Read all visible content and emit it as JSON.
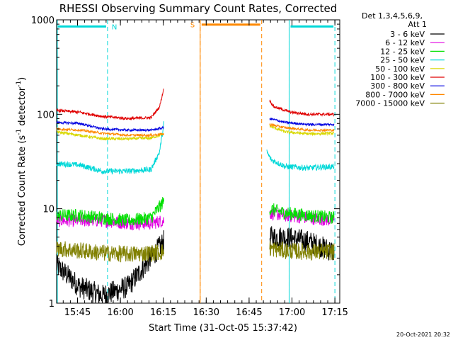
{
  "chart_data": {
    "type": "line",
    "title": "RHESSI Observing Summary Count Rates, Corrected",
    "xlabel": "Start Time (31-Oct-05 15:37:42)",
    "ylabel_main": "Corrected Count Rate (s",
    "ylabel_sup1": "-1",
    "ylabel_mid": " detector",
    "ylabel_sup2": "-1",
    "ylabel_end": ")",
    "y_scale": "log",
    "ylim": [
      1,
      1000
    ],
    "xlim_minutes": [
      0,
      99
    ],
    "x_ticks": [
      "15:45",
      "16:00",
      "16:15",
      "16:30",
      "16:45",
      "17:00",
      "17:15"
    ],
    "x_tick_minutes": [
      7.3,
      22.3,
      37.3,
      52.3,
      67.3,
      82.3,
      97.3
    ],
    "y_ticks": [
      "1",
      "10",
      "100",
      "1000"
    ],
    "y_tick_values": [
      1,
      10,
      100,
      1000
    ],
    "legend_header": [
      "Det 1,3,4,5,6,9,",
      "Att 1"
    ],
    "series": [
      {
        "name": "3 - 6 keV",
        "color": "#000000",
        "seg1": {
          "x": [
            0,
            8,
            16,
            25,
            33,
            37.5
          ],
          "y": [
            2.5,
            1.5,
            1.2,
            1.5,
            3,
            4.5
          ]
        },
        "seg2": {
          "x": [
            74.5,
            80,
            88,
            97
          ],
          "y": [
            5,
            5,
            4.5,
            3.5
          ]
        }
      },
      {
        "name": "6 - 12 keV",
        "color": "#e000e0",
        "seg1": {
          "x": [
            0,
            8,
            16,
            25,
            33,
            37.5
          ],
          "y": [
            7.5,
            7.5,
            7.5,
            7,
            7,
            7.5
          ]
        },
        "seg2": {
          "x": [
            74.5,
            80,
            88,
            97
          ],
          "y": [
            9,
            8.5,
            8,
            7.5
          ]
        }
      },
      {
        "name": "12 - 25 keV",
        "color": "#00e000",
        "seg1": {
          "x": [
            0,
            8,
            16,
            25,
            33,
            37.5
          ],
          "y": [
            8.5,
            8.5,
            8,
            7.5,
            8,
            12
          ]
        },
        "seg2": {
          "x": [
            74.5,
            80,
            88,
            97
          ],
          "y": [
            10,
            9,
            8.5,
            8
          ]
        }
      },
      {
        "name": "25 - 50 keV",
        "color": "#00d8d8",
        "seg1": {
          "x": [
            0,
            8,
            16,
            25,
            33,
            36,
            37.5
          ],
          "y": [
            30,
            29,
            25,
            25,
            26,
            40,
            80
          ]
        },
        "seg2": {
          "x": [
            73.5,
            75,
            80,
            88,
            97
          ],
          "y": [
            40,
            33,
            28,
            27,
            28
          ]
        }
      },
      {
        "name": "50 - 100 keV",
        "color": "#d8d800",
        "seg1": {
          "x": [
            0,
            8,
            16,
            25,
            33,
            37.5
          ],
          "y": [
            65,
            60,
            55,
            55,
            56,
            62
          ]
        },
        "seg2": {
          "x": [
            74.5,
            80,
            88,
            97
          ],
          "y": [
            75,
            65,
            62,
            63
          ]
        }
      },
      {
        "name": "100 - 300 keV",
        "color": "#e00000",
        "seg1": {
          "x": [
            0,
            8,
            16,
            25,
            33,
            36,
            37.5
          ],
          "y": [
            110,
            105,
            95,
            90,
            92,
            120,
            190
          ]
        },
        "seg2": {
          "x": [
            74.5,
            76,
            82,
            88,
            97
          ],
          "y": [
            140,
            120,
            105,
            100,
            100
          ]
        }
      },
      {
        "name": "300 - 800 keV",
        "color": "#0000e0",
        "seg1": {
          "x": [
            0,
            8,
            16,
            25,
            33,
            37.5
          ],
          "y": [
            82,
            80,
            70,
            68,
            68,
            72
          ]
        },
        "seg2": {
          "x": [
            74.5,
            80,
            88,
            97
          ],
          "y": [
            90,
            82,
            78,
            78
          ]
        }
      },
      {
        "name": "800 - 7000 keV",
        "color": "#ff8800",
        "seg1": {
          "x": [
            0,
            8,
            16,
            25,
            33,
            37.5
          ],
          "y": [
            70,
            68,
            63,
            60,
            60,
            62
          ]
        },
        "seg2": {
          "x": [
            74.5,
            80,
            88,
            97
          ],
          "y": [
            78,
            72,
            68,
            68
          ]
        }
      },
      {
        "name": "7000 - 15000 keV",
        "color": "#808000",
        "seg1": {
          "x": [
            0,
            8,
            16,
            25,
            33,
            37.5
          ],
          "y": [
            3.8,
            3.6,
            3.4,
            3.3,
            3.4,
            3.5
          ]
        },
        "seg2": {
          "x": [
            74.5,
            80,
            88,
            97
          ],
          "y": [
            3.8,
            3.6,
            3.5,
            3.5
          ]
        }
      }
    ],
    "annotations": [
      {
        "label": "N",
        "color": "#00d8d8",
        "bar_x": [
          0,
          17.8
        ],
        "bar_y": 850,
        "line_x": [
          17.8
        ]
      },
      {
        "label": "S",
        "color": "#ff8800",
        "bar_x": [
          50.2,
          71.7
        ],
        "bar_y": 890,
        "line_x": [
          50.2,
          71.7
        ]
      },
      {
        "label": "",
        "color": "#00d8d8",
        "bar_x": [
          81.3,
          97.3
        ],
        "bar_y": 850,
        "line_x": [
          81.3,
          97.3
        ]
      }
    ],
    "timestamp": "20-Oct-2021 20:32"
  }
}
